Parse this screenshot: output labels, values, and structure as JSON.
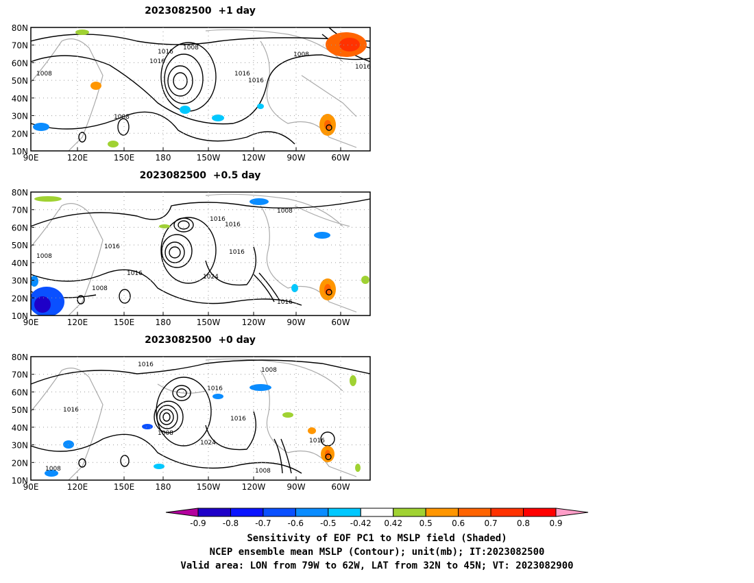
{
  "panels": [
    {
      "title": "2023082500  +1 day",
      "contour_labels": [
        "1016",
        "1008",
        "1016",
        "1008",
        "1016",
        "1016",
        "1008",
        "1008",
        "1016"
      ]
    },
    {
      "title": "2023082500  +0.5 day",
      "contour_labels": [
        "1008",
        "1016",
        "1016",
        "1008",
        "1016",
        "1016",
        "1024",
        "1008",
        "1016",
        "1016"
      ]
    },
    {
      "title": "2023082500  +0 day",
      "contour_labels": [
        "1016",
        "1008",
        "1016",
        "1016",
        "1016",
        "1008",
        "1024",
        "1016",
        "1008",
        "1008"
      ]
    }
  ],
  "lat_ticks": [
    "80N",
    "70N",
    "60N",
    "50N",
    "40N",
    "30N",
    "20N",
    "10N"
  ],
  "lon_ticks": [
    "90E",
    "120E",
    "150E",
    "180",
    "150W",
    "120W",
    "90W",
    "60W"
  ],
  "colorbar": {
    "labels": [
      "-0.9",
      "-0.8",
      "-0.7",
      "-0.6",
      "-0.5",
      "-0.42",
      "0.42",
      "0.5",
      "0.6",
      "0.7",
      "0.8",
      "0.9"
    ],
    "colors": [
      "#b4009e",
      "#1e00c8",
      "#0a14ff",
      "#0a50ff",
      "#0a8cff",
      "#00c8ff",
      "#ffffff",
      "#a0d232",
      "#ff9600",
      "#ff6400",
      "#ff3200",
      "#ff0000",
      "#ff9ec8"
    ]
  },
  "captions": {
    "line1": "Sensitivity of EOF PC1 to MSLP field (Shaded)",
    "line2": "NCEP ensemble mean MSLP (Contour); unit(mb); IT:2023082500",
    "line3": "Valid area: LON from 79W to 62W, LAT from 32N to 45N; VT: 2023082900"
  }
}
